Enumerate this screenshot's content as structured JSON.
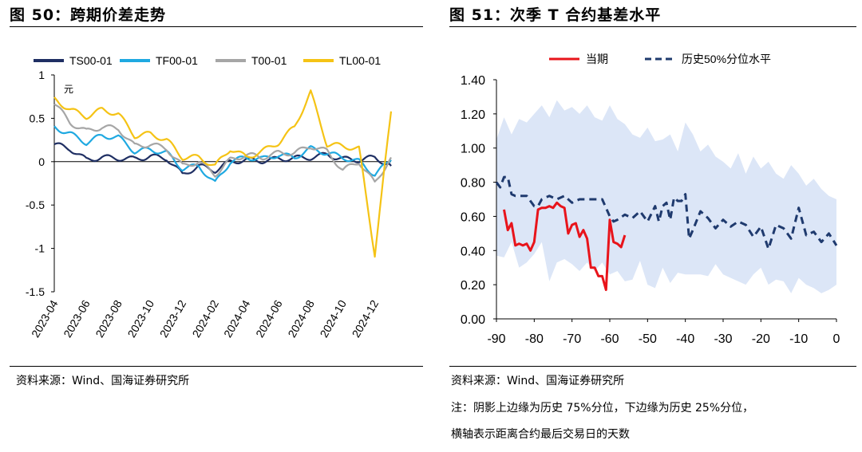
{
  "left_figure": {
    "title": "图 50：跨期价差走势",
    "source": "资料来源：Wind、国海证券研究所",
    "chart_data": {
      "type": "line",
      "unit_label": "元",
      "ylim": [
        -1.5,
        1
      ],
      "yticks": [
        "1",
        "0.5",
        "0",
        "-0.5",
        "-1",
        "-1.5"
      ],
      "xlabels": [
        "2023-04",
        "2023-06",
        "2023-08",
        "2023-10",
        "2023-12",
        "2024-02",
        "2024-04",
        "2024-06",
        "2024-08",
        "2024-10",
        "2024-12"
      ],
      "legend_position": "top",
      "series": [
        {
          "name": "TS00-01",
          "color": "#1f2f63",
          "x": [
            "2023-04",
            "2023-05",
            "2023-06",
            "2023-07",
            "2023-08",
            "2023-09",
            "2023-10",
            "2023-11",
            "2023-12",
            "2024-01",
            "2024-02",
            "2024-03",
            "2024-04",
            "2024-05",
            "2024-06",
            "2024-07",
            "2024-08",
            "2024-09",
            "2024-10",
            "2024-11",
            "2024-12",
            "2025-01"
          ],
          "values": [
            0.2,
            0.15,
            0.02,
            0.05,
            0.04,
            0.03,
            0.06,
            0.04,
            -0.15,
            -0.05,
            -0.1,
            0.0,
            0.02,
            0.01,
            0.03,
            0.04,
            0.05,
            0.08,
            0.03,
            0.02,
            0.05,
            -0.05
          ]
        },
        {
          "name": "TF00-01",
          "color": "#1fa9e1",
          "x": [
            "2023-04",
            "2023-05",
            "2023-06",
            "2023-07",
            "2023-08",
            "2023-09",
            "2023-10",
            "2023-11",
            "2023-12",
            "2024-01",
            "2024-02",
            "2024-03",
            "2024-04",
            "2024-05",
            "2024-06",
            "2024-07",
            "2024-08",
            "2024-09",
            "2024-10",
            "2024-11",
            "2024-12",
            "2025-01"
          ],
          "values": [
            0.4,
            0.32,
            0.22,
            0.3,
            0.28,
            0.12,
            0.14,
            0.1,
            -0.08,
            -0.05,
            -0.25,
            0.0,
            0.05,
            0.03,
            0.08,
            0.05,
            0.15,
            0.1,
            0.05,
            0.0,
            -0.15,
            0.02
          ]
        },
        {
          "name": "T00-01",
          "color": "#a6a6a6",
          "x": [
            "2023-04",
            "2023-05",
            "2023-06",
            "2023-07",
            "2023-08",
            "2023-09",
            "2023-10",
            "2023-11",
            "2023-12",
            "2024-01",
            "2024-02",
            "2024-03",
            "2024-04",
            "2024-05",
            "2024-06",
            "2024-07",
            "2024-08",
            "2024-09",
            "2024-10",
            "2024-11",
            "2024-12",
            "2025-01"
          ],
          "values": [
            0.68,
            0.45,
            0.35,
            0.4,
            0.38,
            0.18,
            0.2,
            0.15,
            -0.05,
            0.0,
            -0.15,
            0.02,
            0.08,
            0.05,
            0.1,
            0.1,
            0.18,
            0.12,
            -0.1,
            0.0,
            -0.25,
            0.05
          ]
        },
        {
          "name": "TL00-01",
          "color": "#f5c315",
          "x": [
            "2023-04",
            "2023-05",
            "2023-06",
            "2023-07",
            "2023-08",
            "2023-09",
            "2023-10",
            "2023-11",
            "2023-12",
            "2024-01",
            "2024-02",
            "2024-03",
            "2024-04",
            "2024-05",
            "2024-06",
            "2024-07",
            "2024-08",
            "2024-09",
            "2024-10",
            "2024-11",
            "2024-12",
            "2025-01"
          ],
          "values": [
            0.72,
            0.6,
            0.52,
            0.6,
            0.55,
            0.3,
            0.32,
            0.25,
            0.05,
            0.05,
            -0.05,
            0.15,
            0.05,
            0.12,
            0.22,
            0.4,
            0.8,
            0.2,
            0.18,
            0.15,
            -1.07,
            0.58
          ]
        }
      ]
    }
  },
  "right_figure": {
    "title": "图 51：次季 T 合约基差水平",
    "source": "资料来源：Wind、国海证券研究所",
    "note_line1": "注：阴影上边缘为历史 75%分位，下边缘为历史 25%分位，",
    "note_line2": "横轴表示距离合约最后交易日的天数",
    "chart_data": {
      "type": "line",
      "xlim": [
        -90,
        0
      ],
      "ylim": [
        0,
        1.4
      ],
      "xticks": [
        "-90",
        "-80",
        "-70",
        "-60",
        "-50",
        "-40",
        "-30",
        "-20",
        "-10",
        "0"
      ],
      "yticks": [
        "1.40",
        "1.20",
        "1.00",
        "0.80",
        "0.60",
        "0.40",
        "0.20",
        "0.00"
      ],
      "legend_position": "top",
      "band": {
        "color": "#dce6f7",
        "x": [
          -90,
          -88,
          -86,
          -84,
          -82,
          -80,
          -78,
          -76,
          -74,
          -72,
          -70,
          -68,
          -66,
          -64,
          -62,
          -60,
          -58,
          -56,
          -54,
          -52,
          -50,
          -48,
          -46,
          -44,
          -42,
          -40,
          -38,
          -36,
          -34,
          -32,
          -30,
          -28,
          -26,
          -24,
          -22,
          -20,
          -18,
          -16,
          -14,
          -12,
          -10,
          -8,
          -6,
          -4,
          -2,
          0
        ],
        "upper": [
          1.05,
          1.18,
          1.08,
          1.17,
          1.15,
          1.2,
          1.25,
          1.18,
          1.28,
          1.22,
          1.24,
          1.2,
          1.25,
          1.18,
          1.16,
          1.25,
          1.17,
          1.14,
          1.08,
          1.06,
          1.12,
          1.04,
          1.05,
          1.08,
          0.98,
          1.15,
          1.08,
          0.98,
          1.02,
          0.95,
          0.92,
          0.88,
          0.97,
          0.85,
          0.95,
          0.88,
          0.92,
          0.85,
          0.82,
          0.9,
          0.85,
          0.78,
          0.82,
          0.76,
          0.72,
          0.7
        ],
        "lower": [
          0.37,
          0.36,
          0.45,
          0.3,
          0.33,
          0.38,
          0.45,
          0.22,
          0.33,
          0.35,
          0.32,
          0.28,
          0.33,
          0.28,
          0.33,
          0.26,
          0.28,
          0.22,
          0.23,
          0.34,
          0.2,
          0.18,
          0.3,
          0.21,
          0.27,
          0.26,
          0.26,
          0.26,
          0.25,
          0.32,
          0.26,
          0.24,
          0.22,
          0.2,
          0.26,
          0.3,
          0.2,
          0.23,
          0.22,
          0.15,
          0.24,
          0.2,
          0.18,
          0.15,
          0.17,
          0.2
        ]
      },
      "series": [
        {
          "name": "当期",
          "color": "#e8141b",
          "style": "solid",
          "x": [
            -88,
            -87,
            -86,
            -85,
            -84,
            -83,
            -82,
            -81,
            -80,
            -79,
            -78,
            -77,
            -76,
            -75,
            -74,
            -73,
            -72,
            -71,
            -70,
            -69,
            -68,
            -67,
            -66,
            -65,
            -64,
            -63,
            -62,
            -61,
            -60,
            -59,
            -58,
            -57,
            -56
          ],
          "values": [
            0.64,
            0.52,
            0.56,
            0.43,
            0.44,
            0.43,
            0.44,
            0.4,
            0.45,
            0.64,
            0.65,
            0.65,
            0.66,
            0.65,
            0.68,
            0.66,
            0.65,
            0.5,
            0.55,
            0.56,
            0.48,
            0.52,
            0.47,
            0.3,
            0.3,
            0.25,
            0.25,
            0.17,
            0.58,
            0.45,
            0.44,
            0.42,
            0.49
          ]
        },
        {
          "name": "历史50%分位水平",
          "color": "#1f3a6e",
          "style": "dashed",
          "x": [
            -90,
            -89,
            -88,
            -87,
            -86,
            -85,
            -84,
            -82,
            -80,
            -79,
            -78,
            -76,
            -74,
            -72,
            -70,
            -68,
            -66,
            -64,
            -62,
            -60,
            -59,
            -58,
            -56,
            -54,
            -52,
            -50,
            -48,
            -47,
            -46,
            -45,
            -44,
            -43,
            -42,
            -41,
            -40,
            -39,
            -38,
            -36,
            -34,
            -32,
            -30,
            -28,
            -26,
            -24,
            -22,
            -20,
            -18,
            -16,
            -14,
            -12,
            -10,
            -8,
            -6,
            -4,
            -2,
            0
          ],
          "values": [
            0.8,
            0.77,
            0.83,
            0.83,
            0.73,
            0.72,
            0.72,
            0.72,
            0.66,
            0.66,
            0.7,
            0.72,
            0.7,
            0.72,
            0.68,
            0.7,
            0.7,
            0.7,
            0.7,
            0.6,
            0.57,
            0.58,
            0.61,
            0.59,
            0.63,
            0.57,
            0.66,
            0.57,
            0.66,
            0.68,
            0.58,
            0.71,
            0.69,
            0.69,
            0.73,
            0.47,
            0.52,
            0.63,
            0.59,
            0.53,
            0.58,
            0.54,
            0.57,
            0.55,
            0.48,
            0.54,
            0.41,
            0.55,
            0.53,
            0.47,
            0.65,
            0.49,
            0.51,
            0.45,
            0.5,
            0.43
          ]
        }
      ]
    }
  }
}
